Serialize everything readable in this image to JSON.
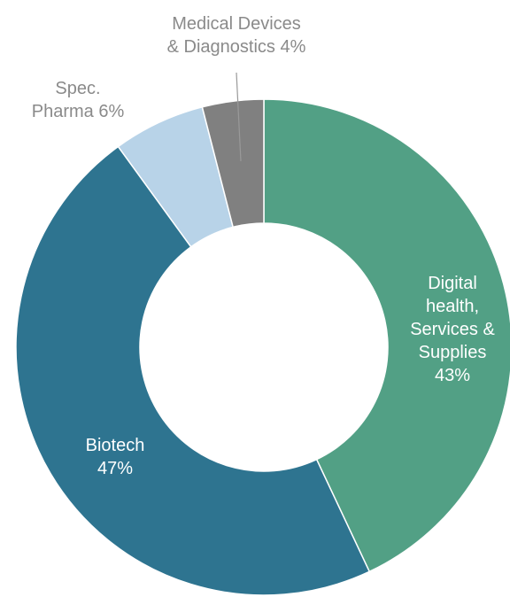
{
  "chart_data": {
    "type": "donut",
    "categories": [
      "Digital health, Services & Supplies",
      "Biotech",
      "Spec. Pharma",
      "Medical Devices & Diagnostics"
    ],
    "values": [
      43,
      47,
      6,
      4
    ],
    "value_labels": [
      "43%",
      "47%",
      "6%",
      "4%"
    ],
    "colors": [
      "#52a085",
      "#2e7490",
      "#b8d3e8",
      "#808080"
    ]
  }
}
